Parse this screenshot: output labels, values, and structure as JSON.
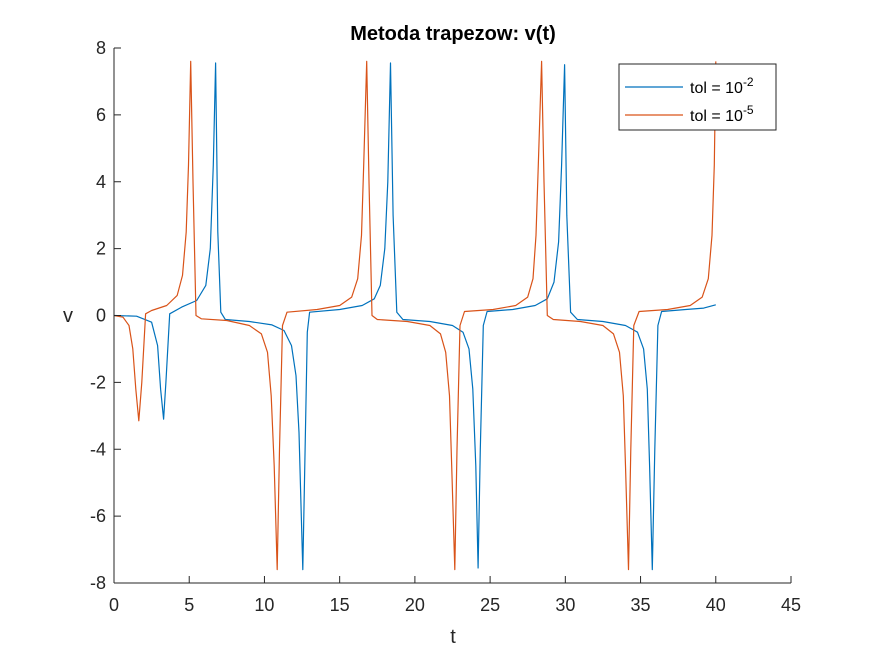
{
  "chart_data": {
    "type": "line",
    "title": "Metoda trapezow: v(t)",
    "xlabel": "t",
    "ylabel": "v",
    "xlim": [
      0,
      45
    ],
    "ylim": [
      -8,
      8
    ],
    "xticks": [
      0,
      5,
      10,
      15,
      20,
      25,
      30,
      35,
      40,
      45
    ],
    "yticks": [
      -8,
      -6,
      -4,
      -2,
      0,
      2,
      4,
      6,
      8
    ],
    "grid": false,
    "legend_position": "top-right",
    "series": [
      {
        "name_base": "tol = 10",
        "name_exp": "-2",
        "color": "#0072BD",
        "points": [
          [
            0,
            0
          ],
          [
            1.5,
            -0.02
          ],
          [
            2.5,
            -0.2
          ],
          [
            2.9,
            -0.9
          ],
          [
            3.1,
            -2.2
          ],
          [
            3.3,
            -3.1
          ],
          [
            3.45,
            -2.0
          ],
          [
            3.7,
            0.05
          ],
          [
            4.5,
            0.25
          ],
          [
            5.5,
            0.45
          ],
          [
            6.1,
            0.9
          ],
          [
            6.4,
            2.0
          ],
          [
            6.6,
            4.5
          ],
          [
            6.75,
            7.55
          ],
          [
            6.9,
            2.5
          ],
          [
            7.1,
            0.1
          ],
          [
            7.4,
            -0.12
          ],
          [
            9,
            -0.18
          ],
          [
            10.5,
            -0.28
          ],
          [
            11.3,
            -0.45
          ],
          [
            11.8,
            -0.9
          ],
          [
            12.1,
            -1.8
          ],
          [
            12.3,
            -3.5
          ],
          [
            12.45,
            -6.0
          ],
          [
            12.55,
            -7.6
          ],
          [
            12.7,
            -4.0
          ],
          [
            12.85,
            -0.5
          ],
          [
            13,
            0.1
          ],
          [
            15,
            0.18
          ],
          [
            16.5,
            0.3
          ],
          [
            17.3,
            0.5
          ],
          [
            17.7,
            0.9
          ],
          [
            18,
            2.0
          ],
          [
            18.2,
            4.0
          ],
          [
            18.38,
            7.55
          ],
          [
            18.55,
            3.0
          ],
          [
            18.8,
            0.1
          ],
          [
            19.2,
            -0.12
          ],
          [
            21,
            -0.18
          ],
          [
            22.5,
            -0.3
          ],
          [
            23.2,
            -0.5
          ],
          [
            23.6,
            -1.0
          ],
          [
            23.85,
            -2.2
          ],
          [
            24.05,
            -4.5
          ],
          [
            24.2,
            -7.55
          ],
          [
            24.35,
            -4.0
          ],
          [
            24.55,
            -0.3
          ],
          [
            24.8,
            0.12
          ],
          [
            26.5,
            0.18
          ],
          [
            28,
            0.3
          ],
          [
            28.8,
            0.5
          ],
          [
            29.25,
            1.0
          ],
          [
            29.55,
            2.2
          ],
          [
            29.75,
            4.5
          ],
          [
            29.95,
            7.5
          ],
          [
            30.1,
            3.0
          ],
          [
            30.35,
            0.1
          ],
          [
            30.8,
            -0.12
          ],
          [
            32.5,
            -0.18
          ],
          [
            34,
            -0.3
          ],
          [
            34.8,
            -0.5
          ],
          [
            35.2,
            -1.0
          ],
          [
            35.45,
            -2.2
          ],
          [
            35.6,
            -4.5
          ],
          [
            35.78,
            -7.6
          ],
          [
            35.95,
            -4.0
          ],
          [
            36.15,
            -0.3
          ],
          [
            36.4,
            0.12
          ],
          [
            38,
            0.18
          ],
          [
            39.2,
            0.22
          ],
          [
            40,
            0.32
          ]
        ]
      },
      {
        "name_base": "tol = 10",
        "name_exp": "-5",
        "color": "#D95319",
        "points": [
          [
            0,
            0
          ],
          [
            0.6,
            -0.05
          ],
          [
            1.0,
            -0.3
          ],
          [
            1.25,
            -1.0
          ],
          [
            1.45,
            -2.2
          ],
          [
            1.65,
            -3.15
          ],
          [
            1.85,
            -2.0
          ],
          [
            2.1,
            0.05
          ],
          [
            2.5,
            0.15
          ],
          [
            3.5,
            0.3
          ],
          [
            4.2,
            0.6
          ],
          [
            4.55,
            1.2
          ],
          [
            4.8,
            2.5
          ],
          [
            4.95,
            4.5
          ],
          [
            5.1,
            7.6
          ],
          [
            5.25,
            4.0
          ],
          [
            5.45,
            0.0
          ],
          [
            5.8,
            -0.1
          ],
          [
            7.5,
            -0.15
          ],
          [
            9,
            -0.3
          ],
          [
            9.8,
            -0.55
          ],
          [
            10.2,
            -1.1
          ],
          [
            10.45,
            -2.4
          ],
          [
            10.65,
            -4.5
          ],
          [
            10.85,
            -7.6
          ],
          [
            11.0,
            -4.0
          ],
          [
            11.2,
            -0.3
          ],
          [
            11.5,
            0.1
          ],
          [
            13.5,
            0.18
          ],
          [
            15,
            0.3
          ],
          [
            15.8,
            0.55
          ],
          [
            16.2,
            1.1
          ],
          [
            16.45,
            2.4
          ],
          [
            16.6,
            4.5
          ],
          [
            16.8,
            7.6
          ],
          [
            16.95,
            4.0
          ],
          [
            17.15,
            0.0
          ],
          [
            17.5,
            -0.12
          ],
          [
            19.5,
            -0.18
          ],
          [
            21,
            -0.3
          ],
          [
            21.7,
            -0.55
          ],
          [
            22.05,
            -1.1
          ],
          [
            22.3,
            -2.4
          ],
          [
            22.45,
            -4.5
          ],
          [
            22.65,
            -7.6
          ],
          [
            22.8,
            -4.0
          ],
          [
            23.0,
            -0.3
          ],
          [
            23.3,
            0.12
          ],
          [
            25.2,
            0.18
          ],
          [
            26.7,
            0.3
          ],
          [
            27.5,
            0.55
          ],
          [
            27.85,
            1.1
          ],
          [
            28.05,
            2.4
          ],
          [
            28.2,
            4.5
          ],
          [
            28.42,
            7.6
          ],
          [
            28.58,
            4.0
          ],
          [
            28.8,
            0.0
          ],
          [
            29.2,
            -0.12
          ],
          [
            31,
            -0.18
          ],
          [
            32.5,
            -0.3
          ],
          [
            33.2,
            -0.55
          ],
          [
            33.6,
            -1.1
          ],
          [
            33.85,
            -2.4
          ],
          [
            34.0,
            -4.5
          ],
          [
            34.2,
            -7.6
          ],
          [
            34.35,
            -4.0
          ],
          [
            34.55,
            -0.3
          ],
          [
            34.9,
            0.12
          ],
          [
            36.8,
            0.18
          ],
          [
            38.3,
            0.3
          ],
          [
            39.1,
            0.55
          ],
          [
            39.5,
            1.1
          ],
          [
            39.75,
            2.4
          ],
          [
            39.9,
            4.5
          ],
          [
            40.0,
            7.6
          ]
        ]
      }
    ]
  }
}
